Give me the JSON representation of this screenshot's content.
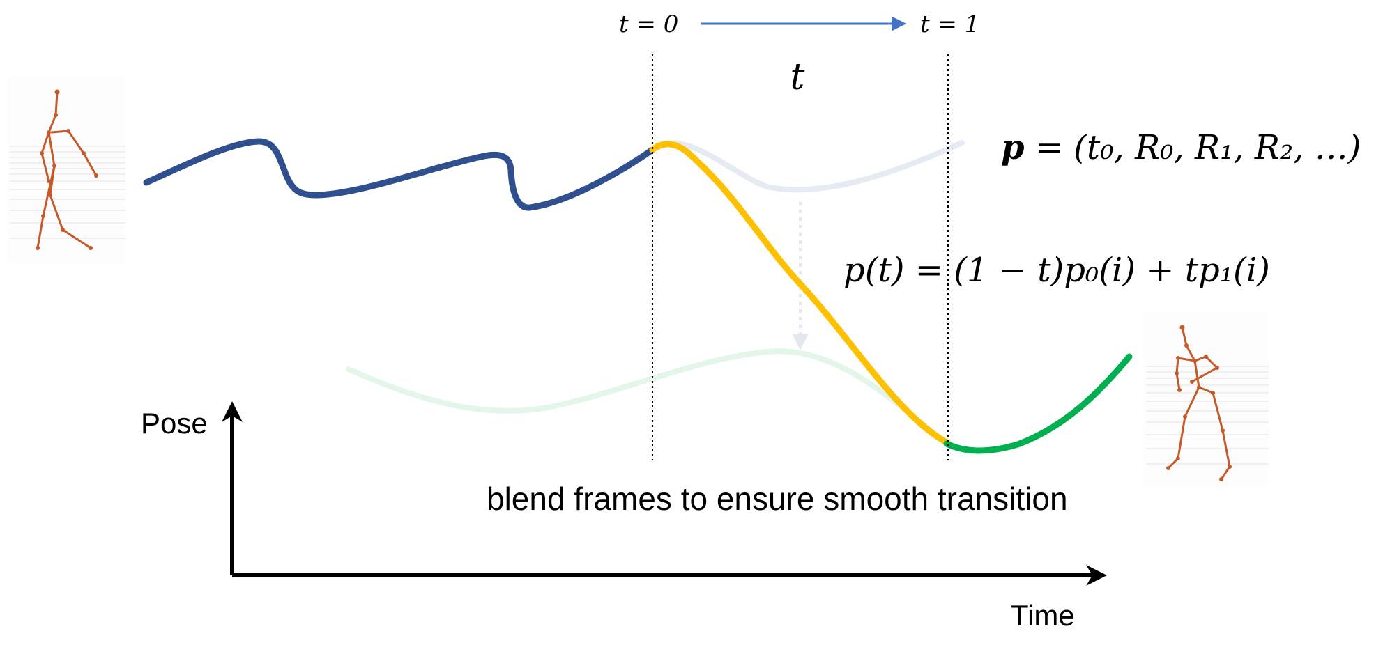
{
  "colors": {
    "source_curve": "#2f4f8f",
    "blend_curve": "#ffc000",
    "target_curve": "#00b050",
    "source_ghost": "#e6eaf3",
    "target_ghost": "#e4f5e9",
    "arrow_blue": "#4472c4",
    "skeleton": "#c55a2b"
  },
  "header": {
    "t_start": "t = 0",
    "t_end": "t = 1",
    "t_symbol": "t"
  },
  "equations": {
    "pose_def_lhs": "p",
    "pose_def_rhs": " = (t₀, R₀, R₁, R₂, …)",
    "blend_eq": "p(t) = (1 − t)p₀(i) + tp₁(i)"
  },
  "axes": {
    "y_label": "Pose",
    "x_label": "Time"
  },
  "caption": "blend frames to ensure smooth transition",
  "figures": {
    "left_icon": "walking-skeleton-icon",
    "right_icon": "dancing-skeleton-icon"
  }
}
